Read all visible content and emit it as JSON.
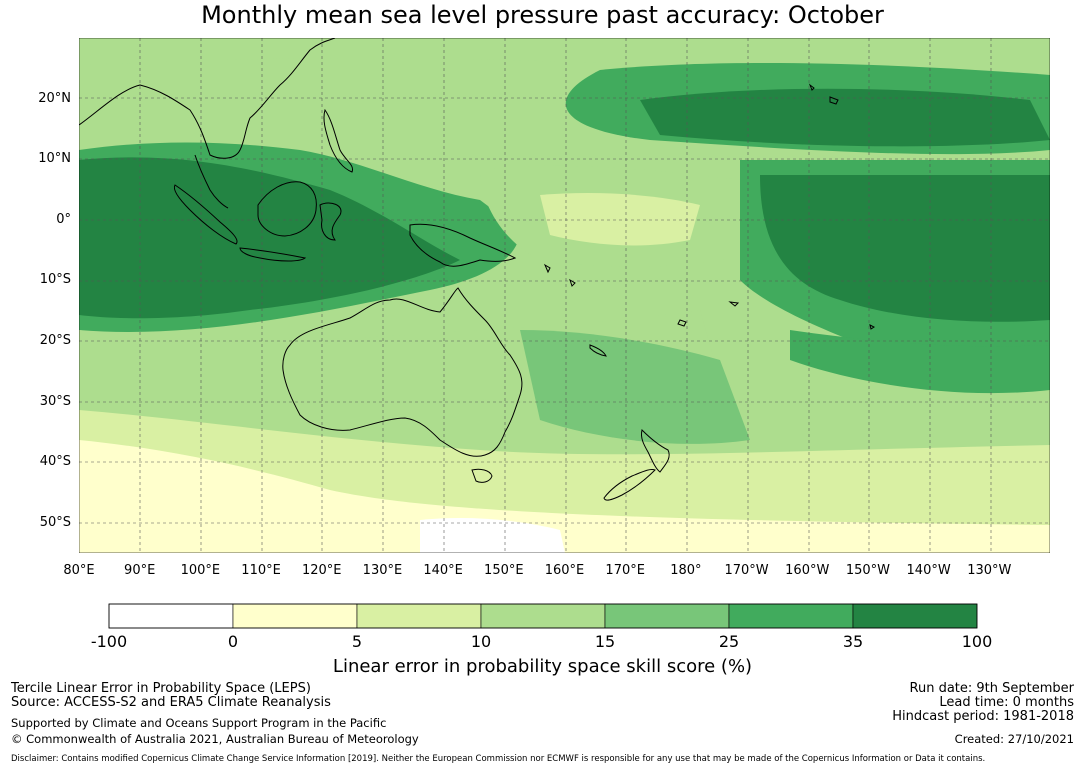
{
  "title": "Monthly mean sea level pressure past accuracy: October",
  "map": {
    "lon_range": [
      80,
      240
    ],
    "lat_range": [
      -55,
      30
    ],
    "lat_labels": [
      "20°N",
      "10°N",
      "0°",
      "10°S",
      "20°S",
      "30°S",
      "40°S",
      "50°S"
    ],
    "lat_values": [
      20,
      10,
      0,
      -10,
      -20,
      -30,
      -40,
      -50
    ],
    "lon_labels": [
      "80°E",
      "90°E",
      "100°E",
      "110°E",
      "120°E",
      "130°E",
      "140°E",
      "150°E",
      "160°E",
      "170°E",
      "180°",
      "170°W",
      "160°W",
      "150°W",
      "140°W",
      "130°W"
    ],
    "lon_values": [
      80,
      90,
      100,
      110,
      120,
      130,
      140,
      150,
      160,
      170,
      180,
      190,
      200,
      210,
      220,
      230
    ],
    "gridlines": true
  },
  "colorbar": {
    "ticks": [
      "-100",
      "0",
      "5",
      "10",
      "15",
      "25",
      "35",
      "100"
    ],
    "colors": [
      "#ffffff",
      "#ffffcc",
      "#d9f0a3",
      "#addd8e",
      "#78c679",
      "#41ab5d",
      "#238443"
    ],
    "label": "Linear error in probability space skill score (%)"
  },
  "info": {
    "line1": "Tercile Linear Error in Probability Space (LEPS)",
    "line2": "Source: ACCESS-S2 and ERA5 Climate Reanalysis",
    "line3": "Supported by Climate and Oceans Support Program in the Pacific",
    "line4": "© Commonwealth of Australia 2021, Australian Bureau of Meteorology",
    "run_date": "Run date: 9th September",
    "lead_time": "Lead time: 0 months",
    "hindcast": "Hindcast period: 1981-2018",
    "created": "Created: 27/10/2021",
    "disclaimer": "Disclaimer: Contains modified Copernicus Climate Change Service Information [2019]. Neither the European Commission nor ECMWF is responsible for any use that may be made of the Copernicus Information or Data it contains."
  }
}
